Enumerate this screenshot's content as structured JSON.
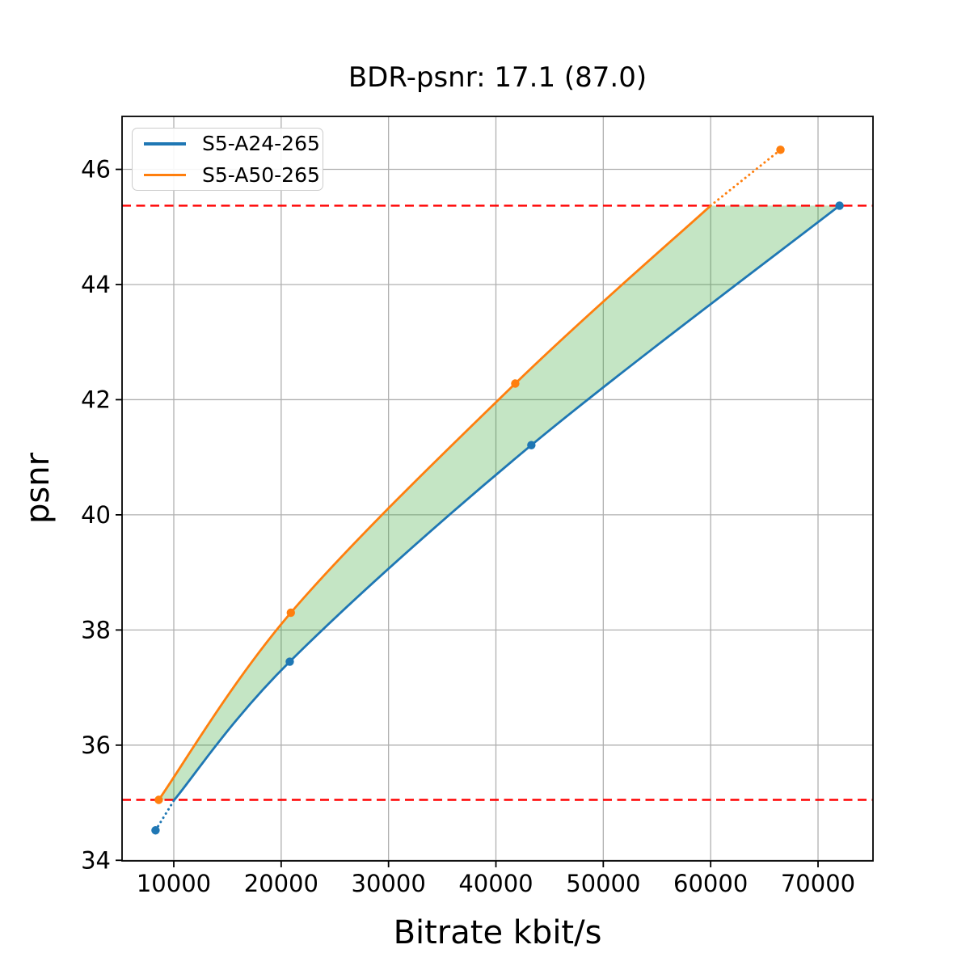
{
  "chart_data": {
    "type": "line",
    "title": "BDR-psnr: 17.1 (87.0)",
    "xlabel": "Bitrate kbit/s",
    "ylabel": "psnr",
    "xlim": [
      5182,
      75119
    ],
    "ylim": [
      33.99,
      46.92
    ],
    "xticks": [
      10000,
      20000,
      30000,
      40000,
      50000,
      60000,
      70000
    ],
    "yticks": [
      34,
      36,
      38,
      40,
      42,
      44,
      46
    ],
    "grid": true,
    "grid_color": "#b0b0b0",
    "legend_position": "upper left",
    "series": [
      {
        "name": "S5-A24-265",
        "color": "#1f77b4",
        "points": [
          [
            8300,
            34.52
          ],
          [
            20800,
            37.45
          ],
          [
            43300,
            41.21
          ],
          [
            72000,
            45.37
          ]
        ],
        "solid_points": [
          [
            10050,
            35.05
          ],
          [
            20800,
            37.45
          ],
          [
            43300,
            41.21
          ],
          [
            72000,
            45.37
          ]
        ],
        "dotted_segment": [
          [
            8300,
            34.52
          ],
          [
            10050,
            35.05
          ]
        ]
      },
      {
        "name": "S5-A50-265",
        "color": "#ff7f0e",
        "points": [
          [
            8600,
            35.05
          ],
          [
            20900,
            38.3
          ],
          [
            41800,
            42.28
          ],
          [
            66500,
            46.34
          ]
        ],
        "solid_points": [
          [
            8600,
            35.05
          ],
          [
            20900,
            38.3
          ],
          [
            41800,
            42.28
          ],
          [
            60000,
            45.37
          ]
        ],
        "dotted_segment": [
          [
            60000,
            45.37
          ],
          [
            66500,
            46.34
          ]
        ]
      }
    ],
    "reference_lines": {
      "style": "dashed",
      "color": "#ff0000",
      "values": [
        35.05,
        45.37
      ]
    },
    "fill_between": {
      "color": "#2ca02c",
      "opacity": 0.28,
      "upper_series": 1,
      "lower_series": 0,
      "clipped_to": [
        35.05,
        45.37
      ]
    }
  }
}
